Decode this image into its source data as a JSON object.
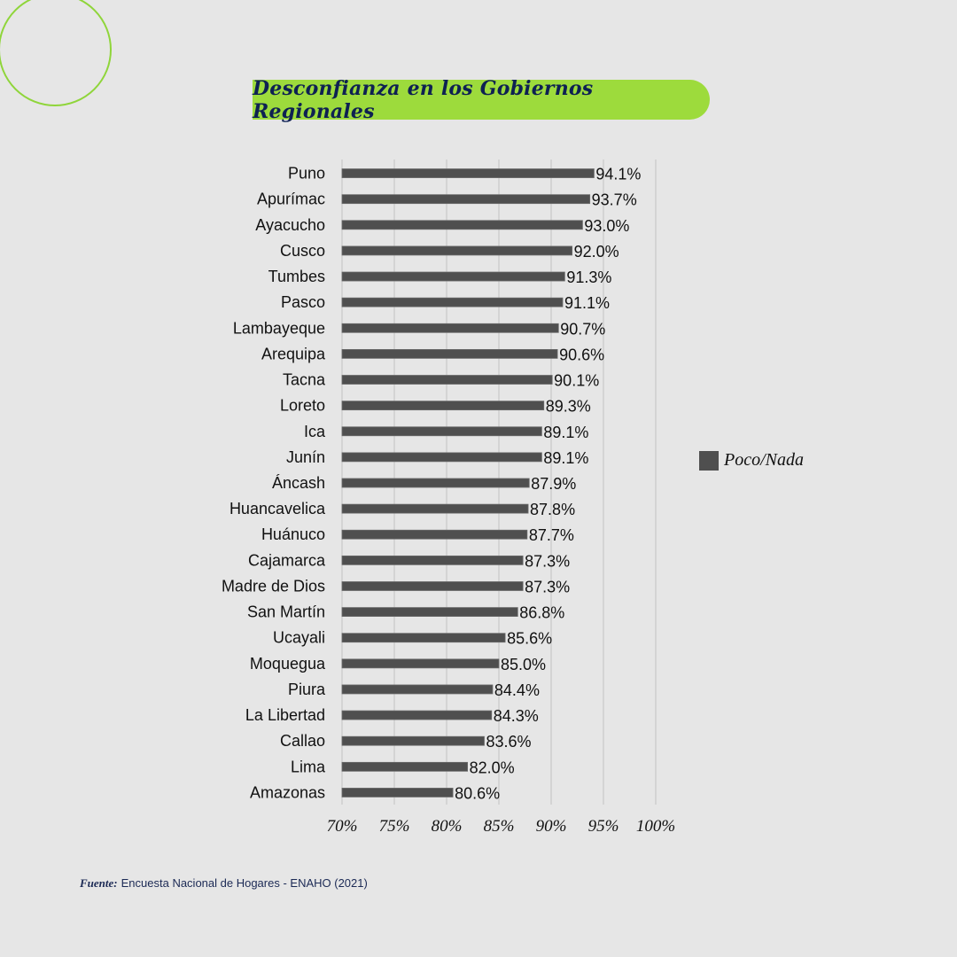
{
  "title": "Desconfianza en los Gobiernos Regionales",
  "colors": {
    "accent": "#9ddb3c",
    "bar": "#4f4f4f",
    "title_text": "#0e2152",
    "background": "#e6e6e6",
    "circle": "#8fd53a"
  },
  "legend": {
    "label": "Poco/Nada"
  },
  "source": {
    "label": "Fuente:",
    "text": "Encuesta Nacional de Hogares - ENAHO (2021)"
  },
  "chart_data": {
    "type": "bar",
    "orientation": "horizontal",
    "title": "Desconfianza en los Gobiernos Regionales",
    "xlabel": "",
    "ylabel": "",
    "xlim": [
      70,
      100
    ],
    "grid": true,
    "legend_position": "right",
    "x_ticks": [
      70,
      75,
      80,
      85,
      90,
      95,
      100
    ],
    "x_tick_labels": [
      "70%",
      "75%",
      "80%",
      "85%",
      "90%",
      "95%",
      "100%"
    ],
    "categories": [
      "Puno",
      "Apurímac",
      "Ayacucho",
      "Cusco",
      "Tumbes",
      "Pasco",
      "Lambayeque",
      "Arequipa",
      "Tacna",
      "Loreto",
      "Ica",
      "Junín",
      "Áncash",
      "Huancavelica",
      "Huánuco",
      "Cajamarca",
      "Madre de Dios",
      "San Martín",
      "Ucayali",
      "Moquegua",
      "Piura",
      "La Libertad",
      "Callao",
      "Lima",
      "Amazonas"
    ],
    "series": [
      {
        "name": "Poco/Nada",
        "values": [
          94.1,
          93.7,
          93.0,
          92.0,
          91.3,
          91.1,
          90.7,
          90.6,
          90.1,
          89.3,
          89.1,
          89.1,
          87.9,
          87.8,
          87.7,
          87.3,
          87.3,
          86.8,
          85.6,
          85.0,
          84.4,
          84.3,
          83.6,
          82.0,
          80.6
        ],
        "value_labels": [
          "94.1%",
          "93.7%",
          "93.0%",
          "92.0%",
          "91.3%",
          "91.1%",
          "90.7%",
          "90.6%",
          "90.1%",
          "89.3%",
          "89.1%",
          "89.1%",
          "87.9%",
          "87.8%",
          "87.7%",
          "87.3%",
          "87.3%",
          "86.8%",
          "85.6%",
          "85.0%",
          "84.4%",
          "84.3%",
          "83.6%",
          "82.0%",
          "80.6%"
        ]
      }
    ]
  }
}
